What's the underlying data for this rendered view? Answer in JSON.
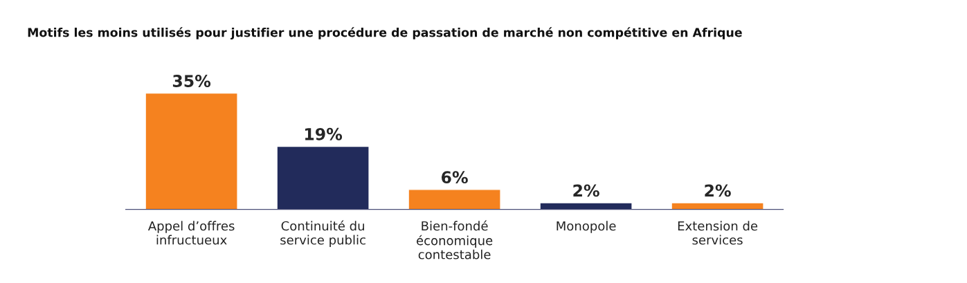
{
  "chart_data": {
    "type": "bar",
    "title": "Motifs les moins utilisés pour justifier une procédure de passation de marché non compétitive en Afrique",
    "categories": [
      "Appel d’offres\ninfructueux",
      "Continuité du\nservice public",
      "Bien-fondé\néconomique\ncontestable",
      "Monopole",
      "Extension de\nservices"
    ],
    "values": [
      35,
      19,
      6,
      2,
      2
    ],
    "colors": [
      "#f5821f",
      "#222b5b",
      "#f5821f",
      "#222b5b",
      "#f5821f"
    ],
    "value_labels": [
      "35%",
      "19%",
      "6%",
      "2%",
      "2%"
    ],
    "grid": false,
    "legend": false
  }
}
